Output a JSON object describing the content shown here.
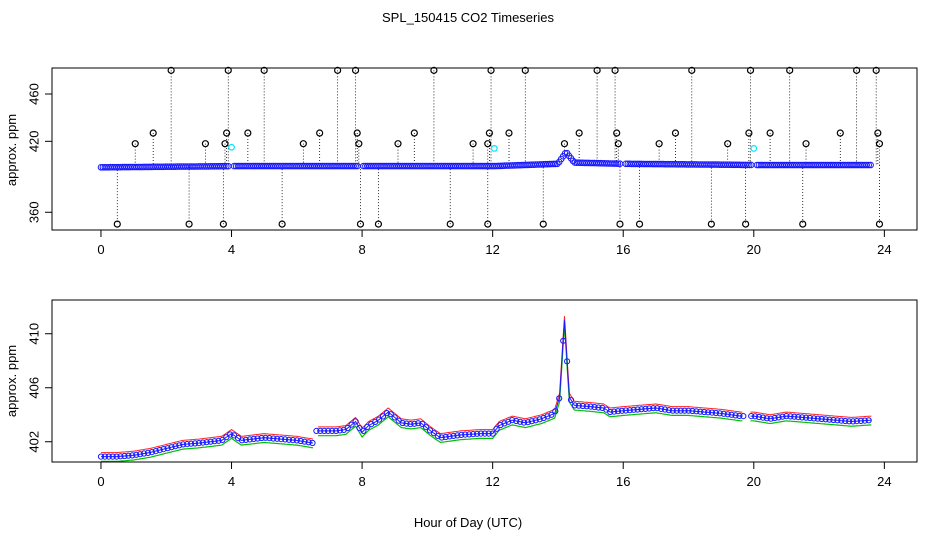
{
  "title": "SPL_150415  CO2 Timeseries",
  "xlabel": "Hour of Day (UTC)",
  "colors": {
    "blue": "#1a1aff",
    "cyan": "#00e5ff",
    "red": "#ff2020",
    "green": "#00c000",
    "black": "#000000"
  },
  "chart_data": [
    {
      "type": "scatter",
      "panel": "top",
      "title": "SPL_150415  CO2 Timeseries",
      "ylabel": "approx. ppm",
      "xlim": [
        -1.5,
        25.0
      ],
      "ylim": [
        345,
        482
      ],
      "xticks": [
        0,
        4,
        8,
        12,
        16,
        20,
        24
      ],
      "yticks": [
        360,
        420,
        460
      ],
      "ytick_labels": [
        "360",
        "420",
        "460"
      ],
      "baseline": [
        [
          0,
          398
        ],
        [
          4,
          399
        ],
        [
          8,
          399
        ],
        [
          12,
          399
        ],
        [
          14,
          401
        ],
        [
          14.25,
          411
        ],
        [
          14.5,
          402
        ],
        [
          16,
          401
        ],
        [
          20,
          400
        ],
        [
          23.6,
          400
        ]
      ],
      "outliers_high": [
        [
          2.15,
          480
        ],
        [
          3.9,
          480
        ],
        [
          5.0,
          480
        ],
        [
          7.25,
          480
        ],
        [
          7.8,
          480
        ],
        [
          10.2,
          480
        ],
        [
          11.95,
          480
        ],
        [
          13.0,
          480
        ],
        [
          15.2,
          480
        ],
        [
          15.75,
          480
        ],
        [
          18.1,
          480
        ],
        [
          19.9,
          480
        ],
        [
          21.1,
          480
        ],
        [
          23.15,
          480
        ],
        [
          23.75,
          480
        ],
        [
          1.6,
          427
        ],
        [
          3.85,
          427
        ],
        [
          4.5,
          427
        ],
        [
          6.7,
          427
        ],
        [
          7.85,
          427
        ],
        [
          9.6,
          427
        ],
        [
          11.9,
          427
        ],
        [
          12.5,
          427
        ],
        [
          14.65,
          427
        ],
        [
          15.8,
          427
        ],
        [
          17.6,
          427
        ],
        [
          19.85,
          427
        ],
        [
          20.5,
          427
        ],
        [
          22.65,
          427
        ],
        [
          23.8,
          427
        ],
        [
          1.05,
          418
        ],
        [
          3.2,
          418
        ],
        [
          3.8,
          418
        ],
        [
          6.2,
          418
        ],
        [
          7.9,
          418
        ],
        [
          9.1,
          418
        ],
        [
          11.4,
          418
        ],
        [
          11.85,
          418
        ],
        [
          14.2,
          418
        ],
        [
          15.85,
          418
        ],
        [
          17.1,
          418
        ],
        [
          19.2,
          418
        ],
        [
          21.6,
          418
        ],
        [
          23.85,
          418
        ]
      ],
      "outliers_low": [
        0.5,
        2.7,
        3.75,
        5.55,
        7.95,
        8.5,
        10.7,
        11.85,
        13.55,
        15.9,
        16.5,
        18.7,
        19.75,
        21.5,
        23.85
      ],
      "low_value": 350,
      "cyan_points": [
        [
          4.0,
          415
        ],
        [
          12.05,
          414
        ],
        [
          20.0,
          414
        ]
      ]
    },
    {
      "type": "line",
      "panel": "bottom",
      "ylabel": "approx. ppm",
      "xlim": [
        -1.5,
        25.0
      ],
      "ylim": [
        400.5,
        412.5
      ],
      "xticks": [
        0,
        4,
        8,
        12,
        16,
        20,
        24
      ],
      "yticks": [
        402,
        406,
        410
      ],
      "ytick_labels": [
        "402",
        "406",
        "410"
      ],
      "series": [
        {
          "name": "mean",
          "points": [
            [
              0,
              400.9
            ],
            [
              0.5,
              400.9
            ],
            [
              1,
              401.0
            ],
            [
              1.5,
              401.2
            ],
            [
              2,
              401.5
            ],
            [
              2.5,
              401.8
            ],
            [
              3,
              401.9
            ],
            [
              3.7,
              402.1
            ],
            [
              4.0,
              402.6
            ],
            [
              4.3,
              402.1
            ],
            [
              5,
              402.3
            ],
            [
              5.5,
              402.2
            ],
            [
              6,
              402.1
            ],
            [
              6.5,
              401.9
            ],
            [
              6.6,
              402.8
            ],
            [
              7.2,
              402.8
            ],
            [
              7.5,
              402.9
            ],
            [
              7.8,
              403.5
            ],
            [
              8.0,
              402.7
            ],
            [
              8.2,
              403.2
            ],
            [
              8.5,
              403.6
            ],
            [
              8.8,
              404.2
            ],
            [
              9.0,
              403.8
            ],
            [
              9.2,
              403.4
            ],
            [
              9.5,
              403.3
            ],
            [
              9.8,
              403.4
            ],
            [
              10.1,
              402.8
            ],
            [
              10.4,
              402.3
            ],
            [
              11.0,
              402.5
            ],
            [
              11.6,
              402.6
            ],
            [
              12.0,
              402.6
            ],
            [
              12.2,
              403.2
            ],
            [
              12.6,
              403.6
            ],
            [
              13.0,
              403.4
            ],
            [
              13.5,
              403.7
            ],
            [
              13.9,
              404.1
            ],
            [
              14.05,
              405.3
            ],
            [
              14.2,
              411.0
            ],
            [
              14.35,
              405.3
            ],
            [
              14.5,
              404.7
            ],
            [
              15,
              404.6
            ],
            [
              15.4,
              404.5
            ],
            [
              15.6,
              404.2
            ],
            [
              16.0,
              404.3
            ],
            [
              16.5,
              404.4
            ],
            [
              17.0,
              404.5
            ],
            [
              17.5,
              404.3
            ],
            [
              18.0,
              404.3
            ],
            [
              18.5,
              404.2
            ],
            [
              19.0,
              404.1
            ],
            [
              19.6,
              403.9
            ],
            [
              20.0,
              403.9
            ],
            [
              20.5,
              403.7
            ],
            [
              21.0,
              403.9
            ],
            [
              21.5,
              403.8
            ],
            [
              22.0,
              403.7
            ],
            [
              22.5,
              403.6
            ],
            [
              23.0,
              403.5
            ],
            [
              23.6,
              403.6
            ]
          ]
        },
        {
          "name": "upper",
          "offset": 0.3
        },
        {
          "name": "lower",
          "offset": -0.35
        }
      ]
    }
  ]
}
